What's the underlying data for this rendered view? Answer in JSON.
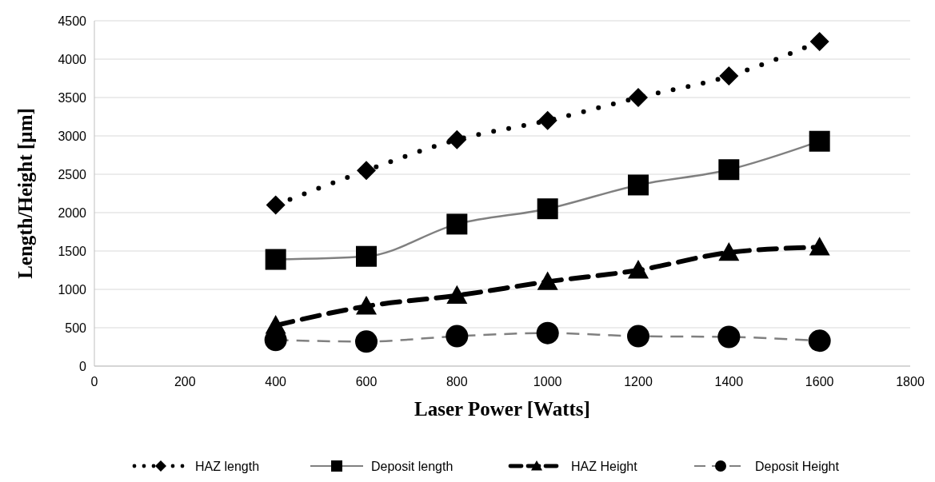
{
  "chart_data": {
    "type": "line",
    "xlabel": "Laser Power [Watts]",
    "ylabel": "Length/Height [µm]",
    "xlim": [
      0,
      1800
    ],
    "xticks": [
      0,
      200,
      400,
      600,
      800,
      1000,
      1200,
      1400,
      1600,
      1800
    ],
    "ylim": [
      0,
      4500
    ],
    "yticks": [
      0,
      500,
      1000,
      1500,
      2000,
      2500,
      3000,
      3500,
      4000,
      4500
    ],
    "grid": "y",
    "legend": "bottom",
    "x": [
      400,
      600,
      800,
      1000,
      1200,
      1400,
      1600
    ],
    "series": [
      {
        "name": "HAZ length",
        "color": "#000000",
        "marker": "diamond",
        "line_style": "dotted",
        "values": [
          2100,
          2550,
          2950,
          3200,
          3500,
          3780,
          4230
        ]
      },
      {
        "name": "Deposit length",
        "color": "#808080",
        "marker": "square",
        "line_style": "solid",
        "values": [
          1390,
          1430,
          1850,
          2050,
          2360,
          2560,
          2930
        ]
      },
      {
        "name": "HAZ Height",
        "color": "#000000",
        "marker": "triangle",
        "line_style": "dashed",
        "values": [
          530,
          780,
          920,
          1100,
          1250,
          1480,
          1550
        ]
      },
      {
        "name": "Deposit Height",
        "color": "#808080",
        "marker": "circle",
        "line_style": "dashed",
        "values": [
          340,
          320,
          390,
          430,
          390,
          380,
          330
        ]
      }
    ]
  }
}
